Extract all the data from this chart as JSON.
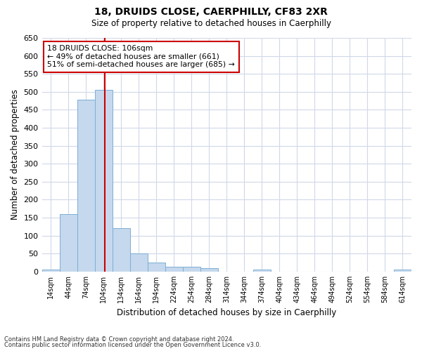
{
  "title": "18, DRUIDS CLOSE, CAERPHILLY, CF83 2XR",
  "subtitle": "Size of property relative to detached houses in Caerphilly",
  "xlabel": "Distribution of detached houses by size in Caerphilly",
  "ylabel": "Number of detached properties",
  "bar_color": "#c5d8ed",
  "bar_edge_color": "#7bafd4",
  "background_color": "#ffffff",
  "grid_color": "#d0d8e8",
  "categories": [
    "14sqm",
    "44sqm",
    "74sqm",
    "104sqm",
    "134sqm",
    "164sqm",
    "194sqm",
    "224sqm",
    "254sqm",
    "284sqm",
    "314sqm",
    "344sqm",
    "374sqm",
    "404sqm",
    "434sqm",
    "464sqm",
    "494sqm",
    "524sqm",
    "554sqm",
    "584sqm",
    "614sqm"
  ],
  "values": [
    5,
    160,
    478,
    505,
    120,
    50,
    25,
    14,
    13,
    10,
    0,
    0,
    6,
    0,
    0,
    0,
    0,
    0,
    0,
    0,
    5
  ],
  "ylim": [
    0,
    650
  ],
  "yticks": [
    0,
    50,
    100,
    150,
    200,
    250,
    300,
    350,
    400,
    450,
    500,
    550,
    600,
    650
  ],
  "property_line_bin": 3.07,
  "annotation_text": "18 DRUIDS CLOSE: 106sqm\n← 49% of detached houses are smaller (661)\n51% of semi-detached houses are larger (685) →",
  "annotation_box_color": "#ffffff",
  "annotation_box_edge": "#cc0000",
  "line_color": "#cc0000",
  "footer_line1": "Contains HM Land Registry data © Crown copyright and database right 2024.",
  "footer_line2": "Contains public sector information licensed under the Open Government Licence v3.0."
}
